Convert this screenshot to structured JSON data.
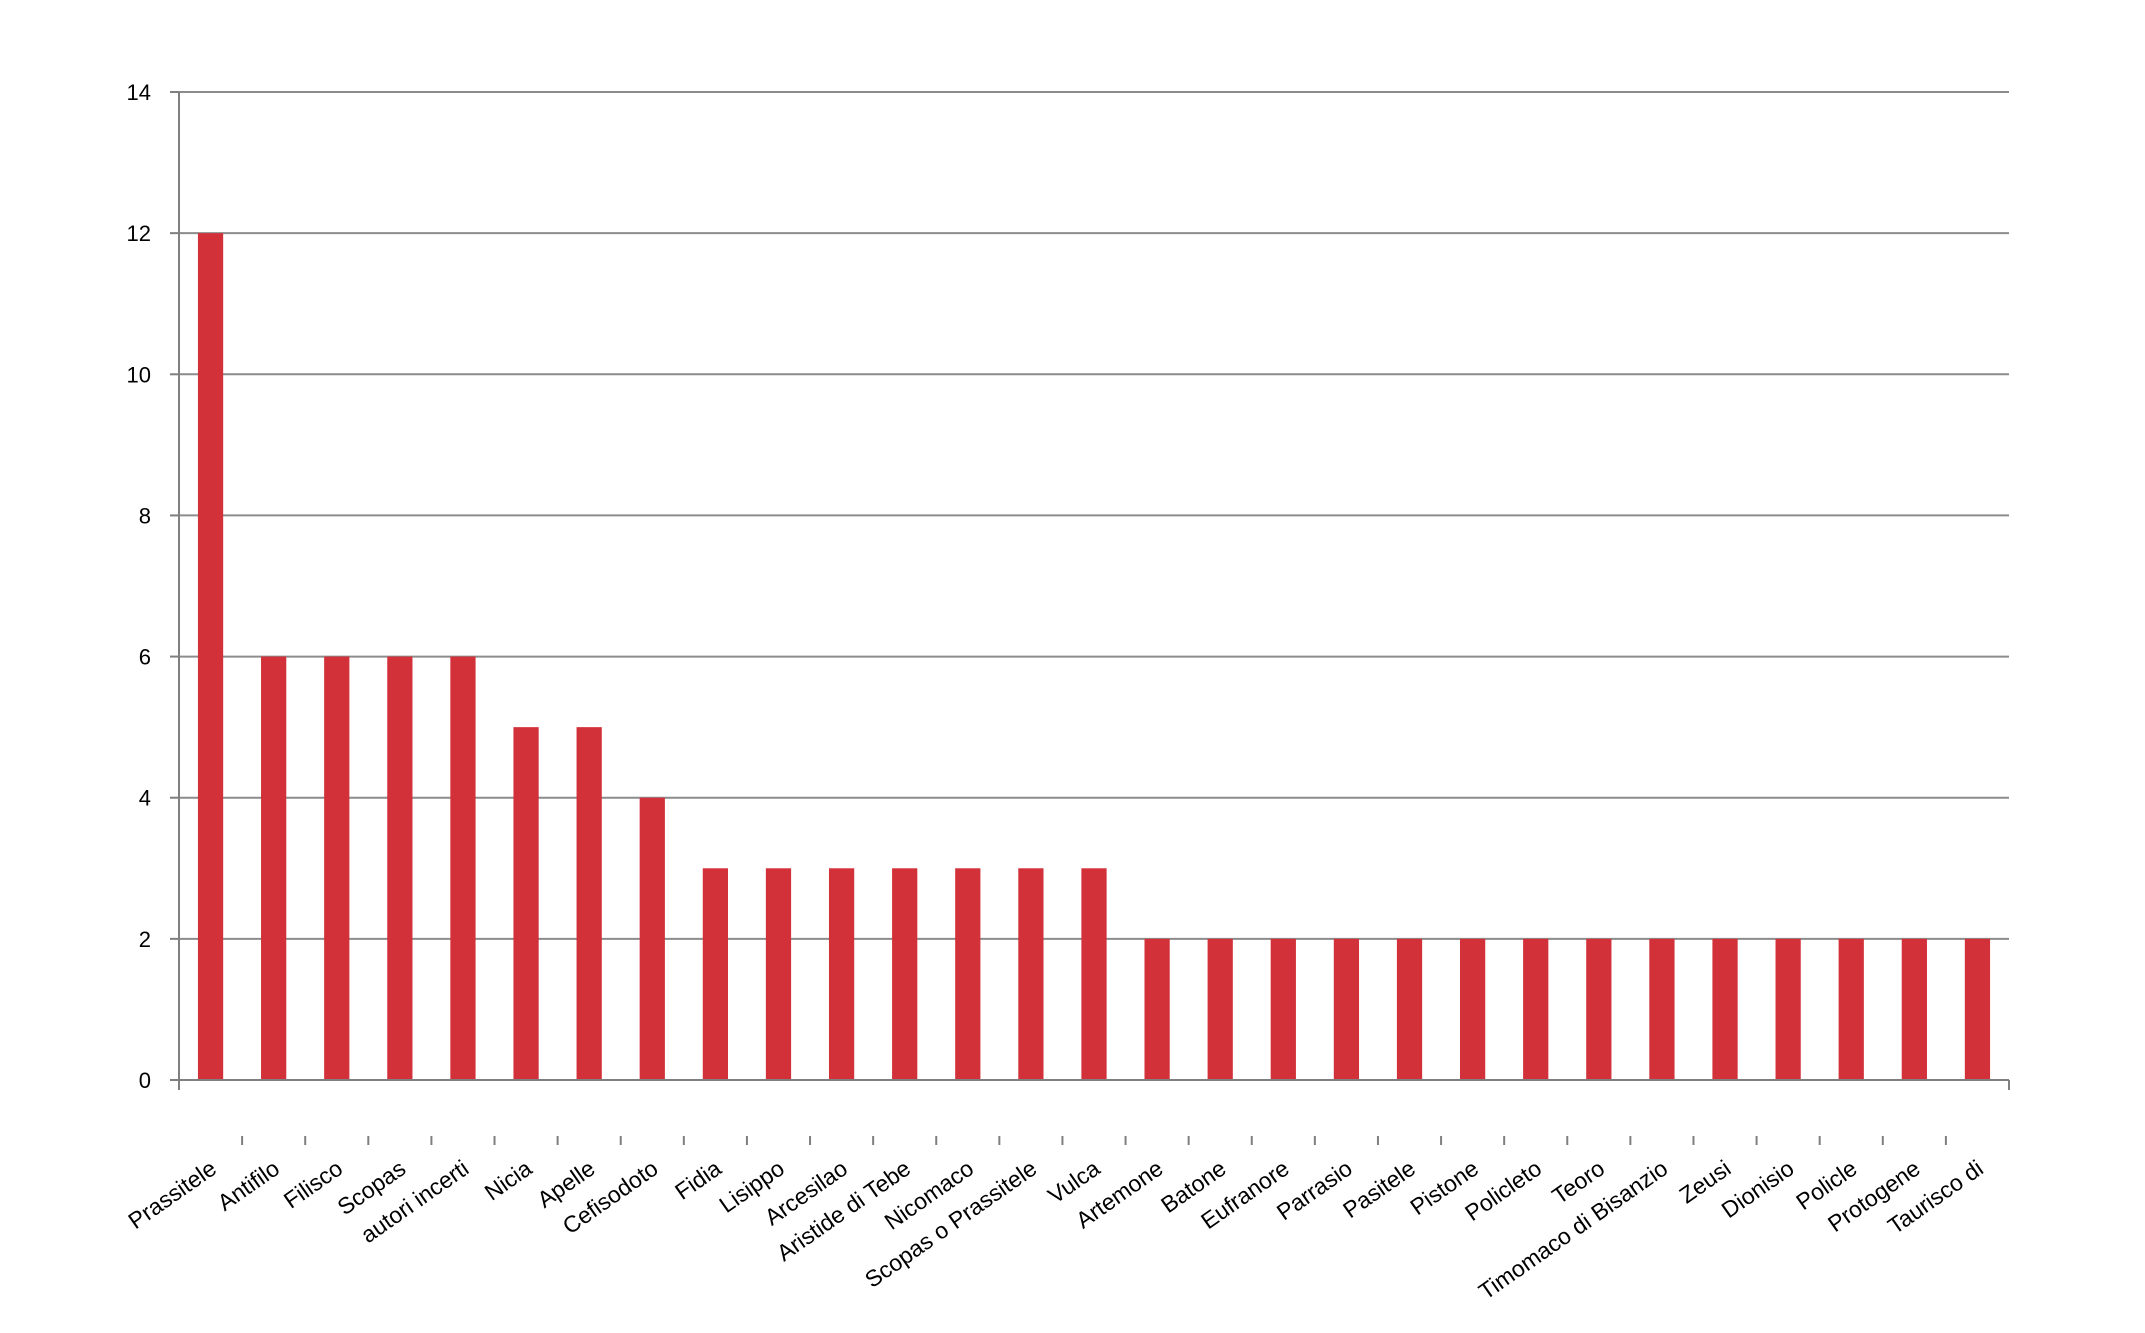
{
  "chart_data": {
    "type": "bar",
    "title": "",
    "xlabel": "",
    "ylabel": "",
    "ylim": [
      0,
      14
    ],
    "yticks": [
      0,
      2,
      4,
      6,
      8,
      10,
      12,
      14
    ],
    "grid": true,
    "legend": "none",
    "bar_color": "#d3313a",
    "categories": [
      "Prassitele",
      "Antifilo",
      "Filisco",
      "Scopas",
      "autori incerti",
      "Nicia",
      "Apelle",
      "Cefisodoto",
      "Fidia",
      "Lisippo",
      "Arcesilao",
      "Aristide di Tebe",
      "Nicomaco",
      "Scopas o Prassitele",
      "Vulca",
      "Artemone",
      "Batone",
      "Eufranore",
      "Parrasio",
      "Pasitele",
      "Pistone",
      "Policleto",
      "Teoro",
      "Timomaco di Bisanzio",
      "Zeusi",
      "Dionisio",
      "Policle",
      "Protogene",
      "Taurisco di"
    ],
    "values": [
      12,
      6,
      6,
      6,
      6,
      5,
      5,
      4,
      3,
      3,
      3,
      3,
      3,
      3,
      3,
      2,
      2,
      2,
      2,
      2,
      2,
      2,
      2,
      2,
      2,
      2,
      2,
      2,
      2
    ]
  }
}
